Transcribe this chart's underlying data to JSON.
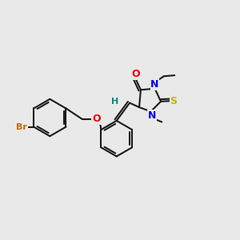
{
  "bg_color": "#E9E9E9",
  "bond_color": "#1a1a1a",
  "atom_colors": {
    "Br": "#CC6600",
    "O": "#EE0000",
    "N": "#0000EE",
    "S": "#BBBB00",
    "H": "#008888"
  },
  "lw": 1.5,
  "fs": 8.5
}
